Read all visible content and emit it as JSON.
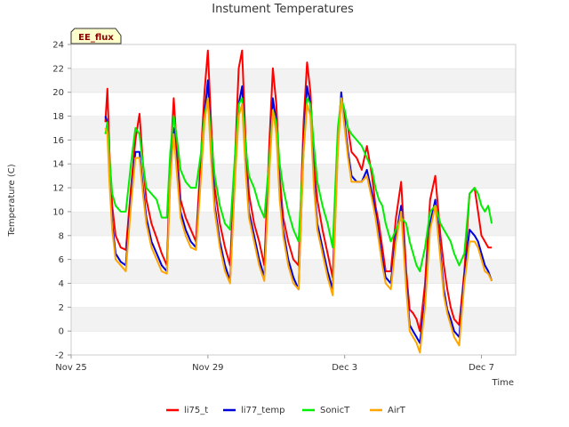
{
  "chart_data": {
    "type": "line",
    "title": "Instument Temperatures",
    "xlabel": "Time",
    "ylabel": "Temperature (C)",
    "badge": "EE_flux",
    "x_unit": "day",
    "x_ticks": [
      {
        "label": "Nov 25",
        "value": 0
      },
      {
        "label": "Nov 29",
        "value": 4
      },
      {
        "label": "Dec 3",
        "value": 8
      },
      {
        "label": "Dec 7",
        "value": 12
      }
    ],
    "xlim": [
      0,
      13
    ],
    "ylim": [
      -2,
      24
    ],
    "y_ticks": [
      -2,
      0,
      2,
      4,
      6,
      8,
      10,
      12,
      14,
      16,
      18,
      20,
      22,
      24
    ],
    "grid": "horizontal bands",
    "legend_position": "bottom",
    "x": [
      1,
      1.06,
      1.12,
      1.2,
      1.3,
      1.45,
      1.6,
      1.75,
      1.88,
      2.0,
      2.1,
      2.2,
      2.35,
      2.5,
      2.65,
      2.8,
      2.9,
      3.0,
      3.1,
      3.2,
      3.35,
      3.5,
      3.65,
      3.8,
      3.9,
      4.0,
      4.1,
      4.2,
      4.35,
      4.5,
      4.65,
      4.8,
      4.9,
      5.0,
      5.1,
      5.2,
      5.35,
      5.5,
      5.65,
      5.8,
      5.9,
      6.0,
      6.1,
      6.2,
      6.35,
      6.5,
      6.65,
      6.8,
      6.9,
      7.0,
      7.1,
      7.2,
      7.35,
      7.5,
      7.65,
      7.8,
      7.9,
      8.0,
      8.1,
      8.2,
      8.35,
      8.5,
      8.65,
      8.8,
      8.9,
      9.0,
      9.1,
      9.2,
      9.35,
      9.5,
      9.65,
      9.8,
      9.9,
      10.0,
      10.1,
      10.2,
      10.35,
      10.5,
      10.65,
      10.8,
      10.9,
      11.0,
      11.1,
      11.2,
      11.35,
      11.5,
      11.65,
      11.8,
      11.9,
      12.0,
      12.1,
      12.2,
      12.3
    ],
    "series": [
      {
        "name": "li75_t",
        "color": "#ff0000",
        "values": [
          17.5,
          20.3,
          15.0,
          10.5,
          8.0,
          7.0,
          6.8,
          12.0,
          16.0,
          18.2,
          14.0,
          11.0,
          9.0,
          7.8,
          6.5,
          5.5,
          14.0,
          19.5,
          15.0,
          11.0,
          9.5,
          8.5,
          7.5,
          15.0,
          20.0,
          23.5,
          17.0,
          12.0,
          9.0,
          7.0,
          5.5,
          15.0,
          22.0,
          23.5,
          16.0,
          11.5,
          9.0,
          7.5,
          5.5,
          16.0,
          22.0,
          19.0,
          13.0,
          9.5,
          7.5,
          6.0,
          5.5,
          17.5,
          22.5,
          20.0,
          14.0,
          11.0,
          8.5,
          6.5,
          4.5,
          15.5,
          19.5,
          18.0,
          17.0,
          15.0,
          14.5,
          13.5,
          15.5,
          13.0,
          10.5,
          9.0,
          7.0,
          5.0,
          5.0,
          9.5,
          12.5,
          5.0,
          1.8,
          1.5,
          1.0,
          0.0,
          4.0,
          11.0,
          13.0,
          8.0,
          5.5,
          3.5,
          2.0,
          1.0,
          0.5,
          5.0,
          11.5,
          12.0,
          10.0,
          8.0,
          7.5,
          7.0,
          7.0
        ]
      },
      {
        "name": "li77_temp",
        "color": "#0000dd",
        "values": [
          18.0,
          17.5,
          13.0,
          9.0,
          6.5,
          5.8,
          5.5,
          11.0,
          15.0,
          15.0,
          12.0,
          9.5,
          7.5,
          6.5,
          5.5,
          5.0,
          13.0,
          17.0,
          13.5,
          10.0,
          8.5,
          7.5,
          7.0,
          13.5,
          18.0,
          21.0,
          15.0,
          10.5,
          7.5,
          5.5,
          4.2,
          13.5,
          19.0,
          20.5,
          14.0,
          10.0,
          8.0,
          6.0,
          4.5,
          14.0,
          19.5,
          17.5,
          11.5,
          8.5,
          6.0,
          4.5,
          3.5,
          15.5,
          20.5,
          19.0,
          12.5,
          9.0,
          7.0,
          5.0,
          3.5,
          15.5,
          20.0,
          17.5,
          15.0,
          13.0,
          12.5,
          12.5,
          13.5,
          11.5,
          10.0,
          8.0,
          6.0,
          4.5,
          4.0,
          8.0,
          10.5,
          4.0,
          0.5,
          0.0,
          -0.5,
          -1.0,
          2.5,
          9.0,
          11.0,
          6.5,
          3.5,
          1.8,
          1.0,
          0.0,
          -0.5,
          4.5,
          8.5,
          8.0,
          7.5,
          6.5,
          5.5,
          5.0,
          4.2
        ]
      },
      {
        "name": "SonicT",
        "color": "#00ee00",
        "values": [
          16.5,
          17.5,
          14.5,
          11.5,
          10.5,
          10.0,
          10.0,
          14.0,
          17.0,
          16.5,
          14.0,
          12.0,
          11.5,
          11.0,
          9.5,
          9.5,
          15.0,
          18.0,
          16.0,
          13.5,
          12.5,
          12.0,
          12.0,
          15.0,
          18.0,
          19.5,
          16.0,
          13.0,
          10.5,
          9.0,
          8.5,
          15.0,
          19.0,
          19.5,
          15.5,
          13.0,
          12.0,
          10.5,
          9.5,
          14.5,
          18.5,
          17.5,
          14.0,
          12.0,
          10.0,
          8.5,
          7.5,
          15.0,
          19.5,
          19.0,
          15.5,
          12.5,
          10.5,
          9.0,
          7.0,
          17.0,
          19.5,
          18.5,
          17.0,
          16.5,
          16.0,
          15.5,
          14.5,
          13.5,
          12.0,
          11.0,
          10.5,
          9.0,
          7.5,
          8.5,
          9.5,
          9.0,
          7.5,
          6.5,
          5.5,
          5.0,
          7.0,
          10.0,
          10.5,
          9.0,
          8.5,
          8.0,
          7.5,
          6.5,
          5.5,
          6.5,
          11.5,
          12.0,
          11.5,
          10.5,
          10.0,
          10.5,
          9.0
        ]
      },
      {
        "name": "AirT",
        "color": "#ffa500",
        "values": [
          17.0,
          16.5,
          12.5,
          8.5,
          6.0,
          5.5,
          5.0,
          10.5,
          14.5,
          14.5,
          11.5,
          9.0,
          7.0,
          6.0,
          5.0,
          4.8,
          12.5,
          16.5,
          13.0,
          9.5,
          8.0,
          7.0,
          6.8,
          13.0,
          17.5,
          19.5,
          14.0,
          10.0,
          7.0,
          5.0,
          4.0,
          13.0,
          18.0,
          19.0,
          13.5,
          9.5,
          7.5,
          5.5,
          4.2,
          13.5,
          18.5,
          16.5,
          11.0,
          8.0,
          5.5,
          4.0,
          3.5,
          15.0,
          19.0,
          18.0,
          12.0,
          8.5,
          6.5,
          4.5,
          3.0,
          15.0,
          19.5,
          17.0,
          14.5,
          12.5,
          12.5,
          12.5,
          13.0,
          11.0,
          9.5,
          7.5,
          5.5,
          4.0,
          3.5,
          7.5,
          10.0,
          3.5,
          0.0,
          -0.5,
          -1.0,
          -1.8,
          2.0,
          8.5,
          10.5,
          6.0,
          3.0,
          1.5,
          0.5,
          -0.5,
          -1.2,
          4.0,
          7.5,
          7.5,
          7.0,
          6.0,
          5.0,
          4.8,
          4.2
        ]
      }
    ]
  }
}
